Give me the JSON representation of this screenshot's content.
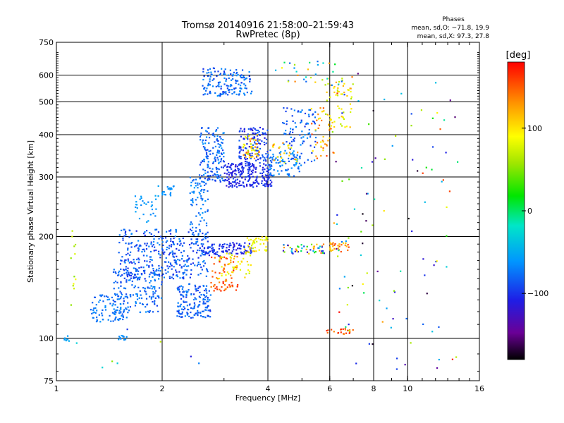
{
  "chart_data": {
    "type": "scatter",
    "title": "Tromsø 20140916 21:58:00–21:59:43",
    "subtitle": "RwPretec (8p)",
    "stats": {
      "heading": "Phases",
      "line1": "mean, sd,O: −71.8, 19.9",
      "line2": "mean, sd,X:  97.3, 27.8"
    },
    "xlabel": "Frequency [MHz]",
    "ylabel": "Stationary phase Virtual Height [km]",
    "xscale": "log",
    "yscale": "log",
    "xlim": [
      1,
      16
    ],
    "ylim": [
      75,
      750
    ],
    "xticks": [
      {
        "value": 1,
        "label": "1"
      },
      {
        "value": 2,
        "label": "2"
      },
      {
        "value": 4,
        "label": "4"
      },
      {
        "value": 6,
        "label": "6"
      },
      {
        "value": 8,
        "label": "8"
      },
      {
        "value": 10,
        "label": "10"
      },
      {
        "value": 16,
        "label": "16"
      }
    ],
    "yticks": [
      {
        "value": 75,
        "label": "75"
      },
      {
        "value": 100,
        "label": "100"
      },
      {
        "value": 200,
        "label": "200"
      },
      {
        "value": 300,
        "label": "300"
      },
      {
        "value": 400,
        "label": "400"
      },
      {
        "value": 500,
        "label": "500"
      },
      {
        "value": 600,
        "label": "600"
      },
      {
        "value": 750,
        "label": "750"
      }
    ],
    "xgrid": [
      2,
      4,
      6,
      8,
      10
    ],
    "ygrid": [
      100,
      200,
      300,
      400,
      500,
      600
    ],
    "grid": true,
    "colorbar": {
      "label": "[deg]",
      "range": [
        -180,
        180
      ],
      "ticks": [
        {
          "value": 100,
          "label": "100"
        },
        {
          "value": 0,
          "label": "0"
        },
        {
          "value": -100,
          "label": "−100"
        }
      ]
    },
    "clusters": [
      {
        "x": [
          1.25,
          1.6
        ],
        "y": [
          112,
          135
        ],
        "phase": [
          -85,
          -60
        ],
        "n": 90
      },
      {
        "x": [
          1.45,
          2.0
        ],
        "y": [
          118,
          160
        ],
        "phase": [
          -95,
          -65
        ],
        "n": 160
      },
      {
        "x": [
          1.5,
          2.7
        ],
        "y": [
          150,
          210
        ],
        "phase": [
          -105,
          -65
        ],
        "n": 360
      },
      {
        "x": [
          2.2,
          2.75
        ],
        "y": [
          115,
          145
        ],
        "phase": [
          -100,
          -65
        ],
        "n": 160
      },
      {
        "x": [
          1.65,
          1.95
        ],
        "y": [
          215,
          265
        ],
        "phase": [
          -70,
          -50
        ],
        "n": 30
      },
      {
        "x": [
          1.95,
          2.2
        ],
        "y": [
          262,
          285
        ],
        "phase": [
          -70,
          -55
        ],
        "n": 20
      },
      {
        "x": [
          2.4,
          2.7
        ],
        "y": [
          200,
          300
        ],
        "phase": [
          -85,
          -60
        ],
        "n": 70
      },
      {
        "x": [
          2.55,
          3.0
        ],
        "y": [
          290,
          420
        ],
        "phase": [
          -100,
          -60
        ],
        "n": 150
      },
      {
        "x": [
          2.6,
          3.6
        ],
        "y": [
          520,
          630
        ],
        "phase": [
          -100,
          -60
        ],
        "n": 150
      },
      {
        "x": [
          3.0,
          4.1
        ],
        "y": [
          280,
          330
        ],
        "phase": [
          -120,
          -90
        ],
        "n": 220
      },
      {
        "x": [
          3.3,
          4.0
        ],
        "y": [
          330,
          420
        ],
        "phase": [
          -115,
          -80
        ],
        "n": 120
      },
      {
        "x": [
          3.4,
          3.8
        ],
        "y": [
          340,
          400
        ],
        "phase": [
          60,
          160
        ],
        "n": 45
      },
      {
        "x": [
          4.0,
          5.0
        ],
        "y": [
          300,
          360
        ],
        "phase": [
          -90,
          -55
        ],
        "n": 80
      },
      {
        "x": [
          4.1,
          4.9
        ],
        "y": [
          330,
          380
        ],
        "phase": [
          80,
          140
        ],
        "n": 25
      },
      {
        "x": [
          4.4,
          5.5
        ],
        "y": [
          330,
          480
        ],
        "phase": [
          -100,
          -60
        ],
        "n": 90
      },
      {
        "x": [
          5.3,
          6.2
        ],
        "y": [
          340,
          480
        ],
        "phase": [
          90,
          160
        ],
        "n": 45
      },
      {
        "x": [
          5.8,
          7.0
        ],
        "y": [
          420,
          580
        ],
        "phase": [
          60,
          120
        ],
        "n": 55
      },
      {
        "x": [
          4.2,
          7.0
        ],
        "y": [
          560,
          660
        ],
        "phase": [
          -90,
          140
        ],
        "n": 35
      },
      {
        "x": [
          2.6,
          3.0
        ],
        "y": [
          175,
          190
        ],
        "phase": [
          -110,
          -80
        ],
        "n": 50
      },
      {
        "x": [
          3.0,
          3.6
        ],
        "y": [
          178,
          192
        ],
        "phase": [
          -120,
          -90
        ],
        "n": 55
      },
      {
        "x": [
          3.4,
          4.0
        ],
        "y": [
          178,
          200
        ],
        "phase": [
          60,
          120
        ],
        "n": 45
      },
      {
        "x": [
          4.4,
          5.8
        ],
        "y": [
          178,
          190
        ],
        "phase": [
          -130,
          160
        ],
        "n": 50
      },
      {
        "x": [
          6.0,
          6.8
        ],
        "y": [
          180,
          192
        ],
        "phase": [
          100,
          160
        ],
        "n": 30
      },
      {
        "x": [
          2.75,
          3.3
        ],
        "y": [
          138,
          175
        ],
        "phase": [
          120,
          170
        ],
        "n": 70
      },
      {
        "x": [
          2.9,
          3.6
        ],
        "y": [
          150,
          180
        ],
        "phase": [
          70,
          110
        ],
        "n": 40
      },
      {
        "x": [
          5.8,
          7.0
        ],
        "y": [
          103,
          107
        ],
        "phase": [
          130,
          175
        ],
        "n": 20
      },
      {
        "x": [
          1.5,
          1.6
        ],
        "y": [
          99,
          102
        ],
        "phase": [
          -70,
          -60
        ],
        "n": 12
      },
      {
        "x": [
          1.05,
          1.1
        ],
        "y": [
          98,
          102
        ],
        "phase": [
          -60,
          -50
        ],
        "n": 8
      },
      {
        "x": [
          1.1,
          1.15
        ],
        "y": [
          120,
          220
        ],
        "phase": [
          50,
          90
        ],
        "n": 12
      },
      {
        "x": [
          6.0,
          14.0
        ],
        "y": [
          80,
          620
        ],
        "phase": [
          -180,
          180
        ],
        "n": 110
      },
      {
        "x": [
          1.1,
          3.0
        ],
        "y": [
          78,
          110
        ],
        "phase": [
          -120,
          120
        ],
        "n": 8
      }
    ]
  }
}
